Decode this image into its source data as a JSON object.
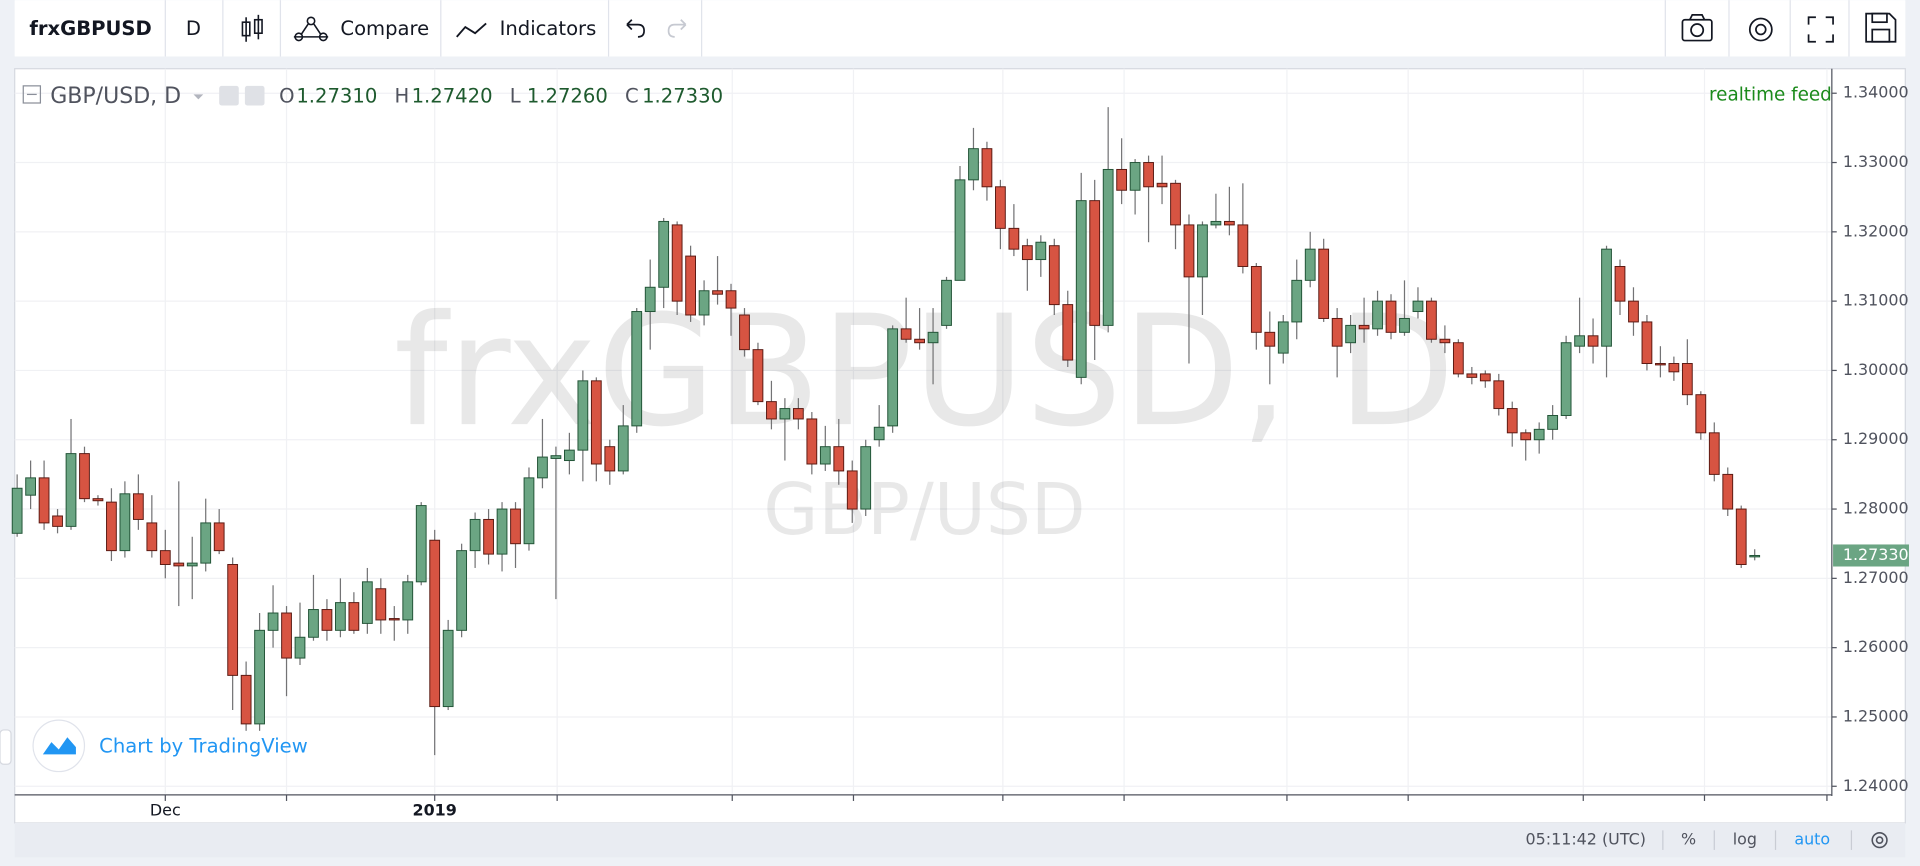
{
  "toolbar": {
    "symbol": "frxGBPUSD",
    "interval": "D",
    "compare": "Compare",
    "indicators": "Indicators"
  },
  "chart_data": {
    "type": "candlestick",
    "legend": {
      "title": "GBP/USD, D",
      "fields": [
        {
          "key": "O",
          "label": "1.27310"
        },
        {
          "key": "H",
          "label": "1.27420"
        },
        {
          "key": "L",
          "label": "1.27260"
        },
        {
          "key": "C",
          "label": "1.27330"
        }
      ]
    },
    "feed": "realtime feed",
    "watermark": "frxGBPUSD, D",
    "watermark_sub": "GBP/USD",
    "up_color": "#6ba583",
    "down_color": "#d75442",
    "grid": true,
    "ylim": [
      1.23894,
      1.34336
    ],
    "yticks": [
      {
        "value": 1.24,
        "label": "1.24000"
      },
      {
        "value": 1.25,
        "label": "1.25000"
      },
      {
        "value": 1.26,
        "label": "1.26000"
      },
      {
        "value": 1.27,
        "label": "1.27000"
      },
      {
        "value": 1.28,
        "label": "1.28000"
      },
      {
        "value": 1.29,
        "label": "1.29000"
      },
      {
        "value": 1.3,
        "label": "1.30000"
      },
      {
        "value": 1.31,
        "label": "1.31000"
      },
      {
        "value": 1.32,
        "label": "1.32000"
      },
      {
        "value": 1.33,
        "label": "1.33000"
      },
      {
        "value": 1.34,
        "label": "1.34000"
      }
    ],
    "last_price": {
      "value": 1.2733,
      "label": "1.27330"
    },
    "categories": [
      null,
      null,
      null,
      null,
      null,
      null,
      null,
      null,
      null,
      null,
      null,
      "Dec",
      null,
      null,
      null,
      null,
      null,
      null,
      null,
      null,
      null,
      null,
      null,
      null,
      null,
      null,
      null,
      null,
      null,
      null,
      null,
      "2019",
      null,
      null,
      null,
      null,
      null,
      null,
      null,
      null,
      null,
      null,
      null,
      null,
      null,
      null,
      null,
      null,
      null,
      null,
      null,
      null,
      null,
      null,
      null,
      null,
      null,
      null,
      null,
      null,
      null,
      null,
      null,
      null,
      null,
      null,
      null,
      null,
      null,
      null,
      null,
      null,
      null,
      null,
      null,
      null,
      null,
      null,
      null,
      null,
      null,
      null,
      null,
      null,
      null,
      null,
      null,
      null,
      null,
      null,
      null,
      null,
      null,
      null,
      null,
      null,
      null,
      null,
      null,
      null,
      null,
      null,
      null,
      null,
      null,
      null,
      null,
      null,
      null,
      null,
      null,
      null,
      null,
      null,
      null,
      null,
      null,
      null,
      null,
      null,
      null,
      null,
      null,
      null,
      null,
      null,
      null,
      null,
      null,
      null
    ],
    "ohlc": [
      [
        1.2765,
        1.285,
        1.276,
        1.283
      ],
      [
        1.282,
        1.287,
        1.28,
        1.2845
      ],
      [
        1.2845,
        1.287,
        1.277,
        1.278
      ],
      [
        1.279,
        1.28,
        1.2765,
        1.2775
      ],
      [
        1.2775,
        1.293,
        1.277,
        1.288
      ],
      [
        1.288,
        1.289,
        1.281,
        1.2815
      ],
      [
        1.2815,
        1.282,
        1.2805,
        1.2812
      ],
      [
        1.281,
        1.283,
        1.2725,
        1.274
      ],
      [
        1.274,
        1.284,
        1.273,
        1.2822
      ],
      [
        1.2822,
        1.285,
        1.277,
        1.2785
      ],
      [
        1.278,
        1.282,
        1.273,
        1.274
      ],
      [
        1.274,
        1.277,
        1.27,
        1.272
      ],
      [
        1.2722,
        1.284,
        1.266,
        1.2718
      ],
      [
        1.2718,
        1.276,
        1.267,
        1.2722
      ],
      [
        1.2722,
        1.2815,
        1.271,
        1.278
      ],
      [
        1.278,
        1.28,
        1.2735,
        1.274
      ],
      [
        1.272,
        1.273,
        1.251,
        1.256
      ],
      [
        1.256,
        1.258,
        1.248,
        1.249
      ],
      [
        1.249,
        1.265,
        1.248,
        1.2625
      ],
      [
        1.2625,
        1.269,
        1.26,
        1.265
      ],
      [
        1.265,
        1.266,
        1.253,
        1.2585
      ],
      [
        1.2585,
        1.2665,
        1.2575,
        1.2615
      ],
      [
        1.2615,
        1.2705,
        1.261,
        1.2655
      ],
      [
        1.2655,
        1.267,
        1.261,
        1.2625
      ],
      [
        1.2625,
        1.27,
        1.2615,
        1.2665
      ],
      [
        1.2665,
        1.268,
        1.262,
        1.2625
      ],
      [
        1.2635,
        1.2715,
        1.262,
        1.2695
      ],
      [
        1.2685,
        1.27,
        1.262,
        1.264
      ],
      [
        1.2642,
        1.266,
        1.261,
        1.264
      ],
      [
        1.264,
        1.2705,
        1.262,
        1.2695
      ],
      [
        1.2695,
        1.281,
        1.269,
        1.2805
      ],
      [
        1.2755,
        1.277,
        1.2445,
        1.2515
      ],
      [
        1.2515,
        1.264,
        1.251,
        1.2625
      ],
      [
        1.2625,
        1.275,
        1.2615,
        1.274
      ],
      [
        1.274,
        1.2795,
        1.2715,
        1.2785
      ],
      [
        1.2785,
        1.28,
        1.272,
        1.2735
      ],
      [
        1.2735,
        1.281,
        1.271,
        1.28
      ],
      [
        1.28,
        1.281,
        1.2715,
        1.275
      ],
      [
        1.275,
        1.286,
        1.274,
        1.2845
      ],
      [
        1.2845,
        1.293,
        1.283,
        1.2875
      ],
      [
        1.2873,
        1.289,
        1.267,
        1.2877
      ],
      [
        1.287,
        1.291,
        1.285,
        1.2885
      ],
      [
        1.2885,
        1.3,
        1.284,
        1.2985
      ],
      [
        1.2985,
        1.299,
        1.284,
        1.2865
      ],
      [
        1.289,
        1.29,
        1.2835,
        1.2855
      ],
      [
        1.2855,
        1.295,
        1.285,
        1.292
      ],
      [
        1.292,
        1.309,
        1.291,
        1.3085
      ],
      [
        1.3085,
        1.316,
        1.303,
        1.312
      ],
      [
        1.312,
        1.322,
        1.309,
        1.3215
      ],
      [
        1.321,
        1.3215,
        1.308,
        1.31
      ],
      [
        1.3165,
        1.318,
        1.307,
        1.308
      ],
      [
        1.308,
        1.313,
        1.3065,
        1.3115
      ],
      [
        1.3115,
        1.3165,
        1.3095,
        1.311
      ],
      [
        1.3115,
        1.3125,
        1.305,
        1.309
      ],
      [
        1.308,
        1.309,
        1.302,
        1.303
      ],
      [
        1.303,
        1.304,
        1.295,
        1.2955
      ],
      [
        1.2955,
        1.2985,
        1.2915,
        1.293
      ],
      [
        1.293,
        1.296,
        1.287,
        1.2945
      ],
      [
        1.2945,
        1.296,
        1.2915,
        1.293
      ],
      [
        1.293,
        1.294,
        1.285,
        1.2865
      ],
      [
        1.2865,
        1.292,
        1.2855,
        1.289
      ],
      [
        1.289,
        1.293,
        1.2835,
        1.2855
      ],
      [
        1.2855,
        1.287,
        1.278,
        1.28
      ],
      [
        1.28,
        1.29,
        1.279,
        1.289
      ],
      [
        1.29,
        1.295,
        1.289,
        1.2918
      ],
      [
        1.292,
        1.3065,
        1.291,
        1.306
      ],
      [
        1.306,
        1.3105,
        1.304,
        1.3045
      ],
      [
        1.3045,
        1.309,
        1.303,
        1.304
      ],
      [
        1.304,
        1.309,
        1.298,
        1.3055
      ],
      [
        1.3065,
        1.3135,
        1.306,
        1.313
      ],
      [
        1.313,
        1.3295,
        1.313,
        1.3275
      ],
      [
        1.3275,
        1.335,
        1.326,
        1.332
      ],
      [
        1.332,
        1.333,
        1.3245,
        1.3265
      ],
      [
        1.3265,
        1.3275,
        1.3175,
        1.3205
      ],
      [
        1.3205,
        1.324,
        1.3165,
        1.3175
      ],
      [
        1.318,
        1.319,
        1.3115,
        1.316
      ],
      [
        1.316,
        1.3195,
        1.3135,
        1.3185
      ],
      [
        1.318,
        1.319,
        1.308,
        1.3095
      ],
      [
        1.3095,
        1.3115,
        1.3005,
        1.3015
      ],
      [
        1.299,
        1.3285,
        1.298,
        1.3245
      ],
      [
        1.3245,
        1.3275,
        1.3015,
        1.3065
      ],
      [
        1.3065,
        1.338,
        1.3055,
        1.329
      ],
      [
        1.329,
        1.3335,
        1.324,
        1.326
      ],
      [
        1.326,
        1.3305,
        1.3225,
        1.33
      ],
      [
        1.33,
        1.331,
        1.3185,
        1.3265
      ],
      [
        1.327,
        1.331,
        1.324,
        1.3265
      ],
      [
        1.327,
        1.3275,
        1.3175,
        1.321
      ],
      [
        1.321,
        1.3225,
        1.301,
        1.3135
      ],
      [
        1.3135,
        1.3215,
        1.308,
        1.321
      ],
      [
        1.321,
        1.3255,
        1.3205,
        1.3215
      ],
      [
        1.3215,
        1.3265,
        1.3195,
        1.321
      ],
      [
        1.321,
        1.327,
        1.314,
        1.315
      ],
      [
        1.315,
        1.3155,
        1.303,
        1.3055
      ],
      [
        1.3055,
        1.3085,
        1.298,
        1.3035
      ],
      [
        1.3025,
        1.308,
        1.301,
        1.307
      ],
      [
        1.307,
        1.316,
        1.3045,
        1.313
      ],
      [
        1.313,
        1.32,
        1.312,
        1.3175
      ],
      [
        1.3175,
        1.319,
        1.307,
        1.3075
      ],
      [
        1.3075,
        1.309,
        1.299,
        1.3035
      ],
      [
        1.304,
        1.308,
        1.3025,
        1.3065
      ],
      [
        1.3065,
        1.3105,
        1.304,
        1.306
      ],
      [
        1.306,
        1.3115,
        1.305,
        1.31
      ],
      [
        1.31,
        1.311,
        1.3045,
        1.3055
      ],
      [
        1.3055,
        1.313,
        1.305,
        1.3075
      ],
      [
        1.3085,
        1.312,
        1.3075,
        1.31
      ],
      [
        1.31,
        1.3105,
        1.304,
        1.3045
      ],
      [
        1.3045,
        1.3065,
        1.3025,
        1.304
      ],
      [
        1.304,
        1.3045,
        1.299,
        1.2995
      ],
      [
        1.2995,
        1.3005,
        1.298,
        1.299
      ],
      [
        1.2995,
        1.3,
        1.2975,
        1.2985
      ],
      [
        1.2985,
        1.2995,
        1.2935,
        1.2945
      ],
      [
        1.2945,
        1.2955,
        1.289,
        1.291
      ],
      [
        1.291,
        1.2915,
        1.287,
        1.29
      ],
      [
        1.29,
        1.2925,
        1.288,
        1.2915
      ],
      [
        1.2915,
        1.295,
        1.29,
        1.2935
      ],
      [
        1.2935,
        1.305,
        1.293,
        1.304
      ],
      [
        1.3035,
        1.3105,
        1.3025,
        1.305
      ],
      [
        1.305,
        1.3075,
        1.301,
        1.3035
      ],
      [
        1.3035,
        1.318,
        1.299,
        1.3175
      ],
      [
        1.315,
        1.316,
        1.308,
        1.31
      ],
      [
        1.31,
        1.312,
        1.305,
        1.307
      ],
      [
        1.307,
        1.308,
        1.3,
        1.301
      ],
      [
        1.301,
        1.3035,
        1.299,
        1.3008
      ],
      [
        1.301,
        1.302,
        1.2985,
        1.2998
      ],
      [
        1.301,
        1.3045,
        1.295,
        1.2965
      ],
      [
        1.2965,
        1.297,
        1.29,
        1.291
      ],
      [
        1.291,
        1.2925,
        1.284,
        1.285
      ],
      [
        1.285,
        1.286,
        1.279,
        1.28
      ],
      [
        1.28,
        1.2805,
        1.2715,
        1.272
      ],
      [
        1.2731,
        1.2742,
        1.2726,
        1.2733
      ]
    ]
  },
  "branding": "Chart by TradingView",
  "status_bar": {
    "time": "05:11:42 (UTC)",
    "percent": "%",
    "log": "log",
    "auto": "auto"
  }
}
